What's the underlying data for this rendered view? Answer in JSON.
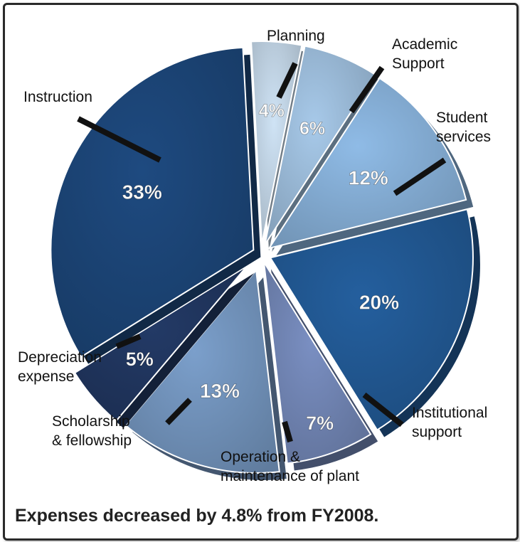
{
  "chart_data": {
    "type": "pie",
    "title": "",
    "caption": "Expenses decreased by 4.8% from FY2008.",
    "unit": "%",
    "slices": [
      {
        "label_lines": [
          "Planning"
        ],
        "value": 4,
        "pct_label": "4%",
        "color": "#cfe3f5"
      },
      {
        "label_lines": [
          "Academic",
          "Support"
        ],
        "value": 6,
        "pct_label": "6%",
        "color": "#a7c9e9"
      },
      {
        "label_lines": [
          "Student",
          "services"
        ],
        "value": 12,
        "pct_label": "12%",
        "color": "#8fbbe6"
      },
      {
        "label_lines": [
          "Institutional",
          "support"
        ],
        "value": 20,
        "pct_label": "20%",
        "color": "#245f9e"
      },
      {
        "label_lines": [
          "Operation &",
          "maintenance of plant"
        ],
        "value": 7,
        "pct_label": "7%",
        "color": "#7a8fc2"
      },
      {
        "label_lines": [
          "Scholarship",
          "& fellowship"
        ],
        "value": 13,
        "pct_label": "13%",
        "color": "#7b9fcb"
      },
      {
        "label_lines": [
          "Depreciation",
          "expense"
        ],
        "value": 5,
        "pct_label": "5%",
        "color": "#233a66"
      },
      {
        "label_lines": [
          "Instruction"
        ],
        "value": 33,
        "pct_label": "33%",
        "color": "#1e4a80"
      }
    ]
  }
}
